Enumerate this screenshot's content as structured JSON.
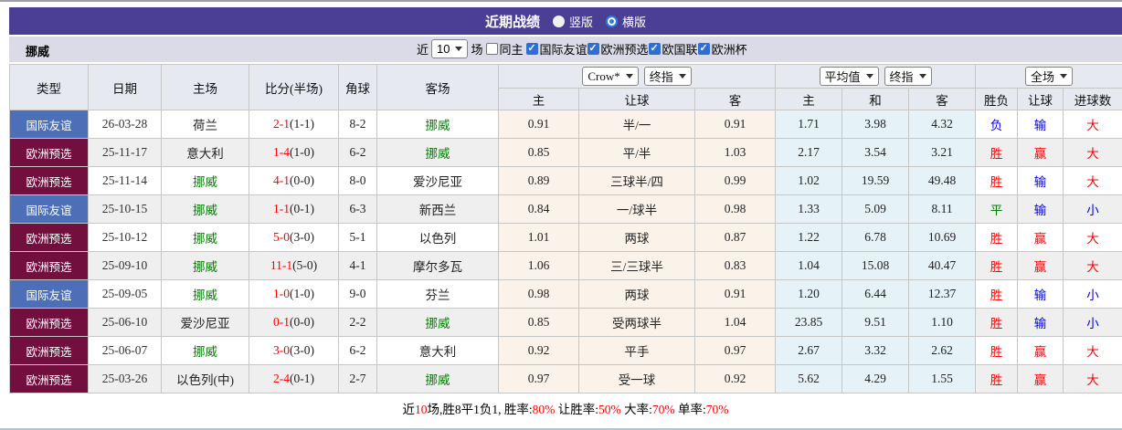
{
  "title_bar": {
    "title": "近期战绩",
    "radios": [
      {
        "label": "竖版",
        "selected": false
      },
      {
        "label": "横版",
        "selected": true
      }
    ]
  },
  "filter_bar": {
    "team": "挪威",
    "recent_prefix": "近",
    "recent_value": "10",
    "recent_suffix": "场",
    "same_home_label": "同主",
    "same_home_checked": false,
    "leagues": [
      {
        "label": "国际友谊",
        "checked": true
      },
      {
        "label": "欧洲预选",
        "checked": true
      },
      {
        "label": "欧国联",
        "checked": true
      },
      {
        "label": "欧洲杯",
        "checked": true
      }
    ]
  },
  "table": {
    "left_headers": [
      "类型",
      "日期",
      "主场",
      "比分(半场)",
      "角球",
      "客场"
    ],
    "group_headers": {
      "crow_select": "Crow*",
      "crow_index_select": "终指",
      "avg_select": "平均值",
      "avg_index_select": "终指",
      "scope_select": "全场"
    },
    "sub_headers": [
      "主",
      "让球",
      "客",
      "主",
      "和",
      "客",
      "胜负",
      "让球",
      "进球数"
    ],
    "rows": [
      {
        "type": "国际友谊",
        "tc": "friendly",
        "date": "26-03-28",
        "home": "荷兰",
        "hg": false,
        "score": "2-1",
        "half": "(1-1)",
        "corner": "8-2",
        "away": "挪威",
        "ag": true,
        "o1": "0.91",
        "hcap": "半/一",
        "o2": "0.91",
        "a1": "1.71",
        "a2": "3.98",
        "a3": "4.32",
        "wdl": "负",
        "wdlc": "blue",
        "hres": "输",
        "hresc": "blue",
        "goal": "大",
        "goalc": "red"
      },
      {
        "type": "欧洲预选",
        "tc": "qualifier",
        "date": "25-11-17",
        "home": "意大利",
        "hg": false,
        "score": "1-4",
        "half": "(1-0)",
        "corner": "6-2",
        "away": "挪威",
        "ag": true,
        "o1": "0.85",
        "hcap": "平/半",
        "o2": "1.03",
        "a1": "2.17",
        "a2": "3.54",
        "a3": "3.21",
        "wdl": "胜",
        "wdlc": "red",
        "hres": "赢",
        "hresc": "red",
        "goal": "大",
        "goalc": "red"
      },
      {
        "type": "欧洲预选",
        "tc": "qualifier",
        "date": "25-11-14",
        "home": "挪威",
        "hg": true,
        "score": "4-1",
        "half": "(0-0)",
        "corner": "8-0",
        "away": "爱沙尼亚",
        "ag": false,
        "o1": "0.89",
        "hcap": "三球半/四",
        "o2": "0.99",
        "a1": "1.02",
        "a2": "19.59",
        "a3": "49.48",
        "wdl": "胜",
        "wdlc": "red",
        "hres": "输",
        "hresc": "blue",
        "goal": "大",
        "goalc": "red"
      },
      {
        "type": "国际友谊",
        "tc": "friendly",
        "date": "25-10-15",
        "home": "挪威",
        "hg": true,
        "score": "1-1",
        "half": "(0-1)",
        "corner": "6-3",
        "away": "新西兰",
        "ag": false,
        "o1": "0.84",
        "hcap": "一/球半",
        "o2": "0.98",
        "a1": "1.33",
        "a2": "5.09",
        "a3": "8.11",
        "wdl": "平",
        "wdlc": "green",
        "hres": "输",
        "hresc": "blue",
        "goal": "小",
        "goalc": "blue"
      },
      {
        "type": "欧洲预选",
        "tc": "qualifier",
        "date": "25-10-12",
        "home": "挪威",
        "hg": true,
        "score": "5-0",
        "half": "(3-0)",
        "corner": "5-1",
        "away": "以色列",
        "ag": false,
        "o1": "1.01",
        "hcap": "两球",
        "o2": "0.87",
        "a1": "1.22",
        "a2": "6.78",
        "a3": "10.69",
        "wdl": "胜",
        "wdlc": "red",
        "hres": "赢",
        "hresc": "red",
        "goal": "大",
        "goalc": "red"
      },
      {
        "type": "欧洲预选",
        "tc": "qualifier",
        "date": "25-09-10",
        "home": "挪威",
        "hg": true,
        "score": "11-1",
        "half": "(5-0)",
        "corner": "4-1",
        "away": "摩尔多瓦",
        "ag": false,
        "o1": "1.06",
        "hcap": "三/三球半",
        "o2": "0.83",
        "a1": "1.04",
        "a2": "15.08",
        "a3": "40.47",
        "wdl": "胜",
        "wdlc": "red",
        "hres": "赢",
        "hresc": "red",
        "goal": "大",
        "goalc": "red"
      },
      {
        "type": "国际友谊",
        "tc": "friendly",
        "date": "25-09-05",
        "home": "挪威",
        "hg": true,
        "score": "1-0",
        "half": "(1-0)",
        "corner": "9-0",
        "away": "芬兰",
        "ag": false,
        "o1": "0.98",
        "hcap": "两球",
        "o2": "0.91",
        "a1": "1.20",
        "a2": "6.44",
        "a3": "12.37",
        "wdl": "胜",
        "wdlc": "red",
        "hres": "输",
        "hresc": "blue",
        "goal": "小",
        "goalc": "blue"
      },
      {
        "type": "欧洲预选",
        "tc": "qualifier",
        "date": "25-06-10",
        "home": "爱沙尼亚",
        "hg": false,
        "score": "0-1",
        "half": "(0-0)",
        "corner": "2-2",
        "away": "挪威",
        "ag": true,
        "o1": "0.85",
        "hcap": "受两球半",
        "o2": "1.04",
        "a1": "23.85",
        "a2": "9.51",
        "a3": "1.10",
        "wdl": "胜",
        "wdlc": "red",
        "hres": "输",
        "hresc": "blue",
        "goal": "小",
        "goalc": "blue"
      },
      {
        "type": "欧洲预选",
        "tc": "qualifier",
        "date": "25-06-07",
        "home": "挪威",
        "hg": true,
        "score": "3-0",
        "half": "(3-0)",
        "corner": "6-2",
        "away": "意大利",
        "ag": false,
        "o1": "0.92",
        "hcap": "平手",
        "o2": "0.97",
        "a1": "2.67",
        "a2": "3.32",
        "a3": "2.62",
        "wdl": "胜",
        "wdlc": "red",
        "hres": "赢",
        "hresc": "red",
        "goal": "大",
        "goalc": "red"
      },
      {
        "type": "欧洲预选",
        "tc": "qualifier",
        "date": "25-03-26",
        "home": "以色列(中)",
        "hg": false,
        "score": "2-4",
        "half": "(0-1)",
        "corner": "2-7",
        "away": "挪威",
        "ag": true,
        "o1": "0.97",
        "hcap": "受一球",
        "o2": "0.92",
        "a1": "5.62",
        "a2": "4.29",
        "a3": "1.55",
        "wdl": "胜",
        "wdlc": "red",
        "hres": "赢",
        "hresc": "red",
        "goal": "大",
        "goalc": "red"
      }
    ]
  },
  "footer": {
    "segments": [
      {
        "t": "近",
        "r": false
      },
      {
        "t": "10",
        "r": true
      },
      {
        "t": "场,胜8平1负1, 胜率:",
        "r": false
      },
      {
        "t": "80%",
        "r": true
      },
      {
        "t": " 让胜率:",
        "r": false
      },
      {
        "t": "50%",
        "r": true
      },
      {
        "t": " 大率:",
        "r": false
      },
      {
        "t": "70%",
        "r": true
      },
      {
        "t": " 单率:",
        "r": false
      },
      {
        "t": "70%",
        "r": true
      }
    ]
  },
  "colors": {
    "bar": "#4A3F94",
    "friendly": "#4D6FB8",
    "qualifier": "#730F3F",
    "cream": "#FBF3EA",
    "lblue": "#E5F2F7",
    "red": "#FF0000",
    "blue": "#0000EE",
    "green": "#008000"
  }
}
